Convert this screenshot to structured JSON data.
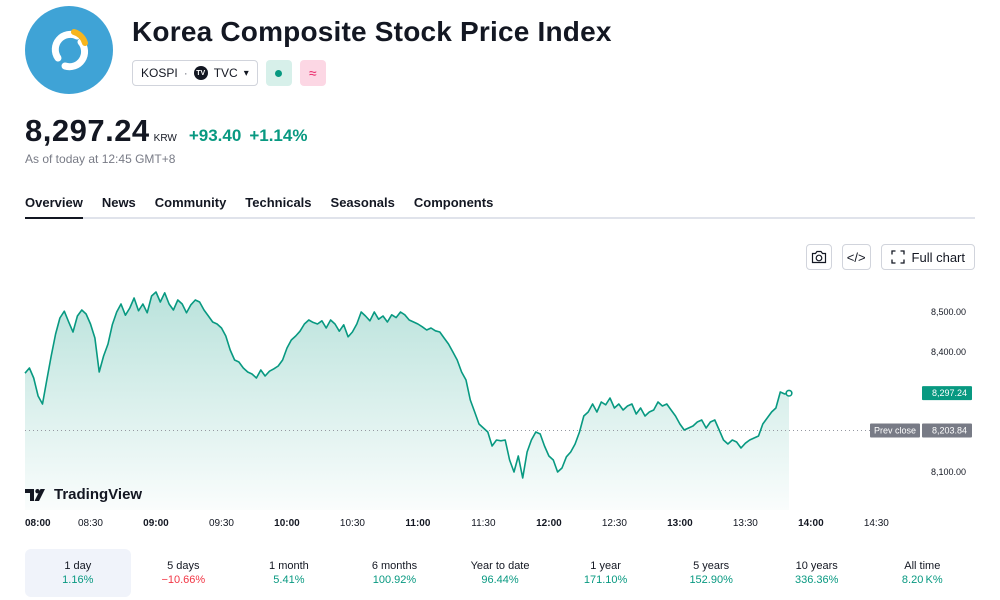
{
  "header": {
    "title": "Korea Composite Stock Price Index",
    "symbol": "KOSPI",
    "source": "TVC",
    "source_badge": "TV",
    "market_status_color": "#089981",
    "delay_icon": "≈"
  },
  "quote": {
    "price": "8,297.24",
    "currency": "KRW",
    "change": "+93.40",
    "change_pct": "+1.14%",
    "as_of": "As of today at 12:45 GMT+8"
  },
  "tabs": [
    "Overview",
    "News",
    "Community",
    "Technicals",
    "Seasonals",
    "Components"
  ],
  "toolbar": {
    "snapshot_icon": "camera-icon",
    "embed_icon": "code-icon",
    "embed_label": "</>",
    "full_chart_label": "Full chart"
  },
  "chart_data": {
    "type": "area",
    "x_ticks": [
      "08:00",
      "08:30",
      "09:00",
      "09:30",
      "10:00",
      "10:30",
      "11:00",
      "11:30",
      "12:00",
      "12:30",
      "13:00",
      "13:30",
      "14:00",
      "14:30"
    ],
    "y_ticks": [
      "8,500.00",
      "8,400.00",
      "8,100.00"
    ],
    "last_price_label": "8,297.24",
    "prev_close_tag": "Prev close",
    "prev_close_value": "8,203.84",
    "prev_close": 8203.84,
    "ylim": [
      8005,
      8580
    ],
    "x_start_minutes": 480,
    "x_end_minutes": 890,
    "line_color": "#089981",
    "series": [
      {
        "points": [
          [
            480,
            8347
          ],
          [
            482,
            8360
          ],
          [
            484,
            8335
          ],
          [
            486,
            8290
          ],
          [
            488,
            8270
          ],
          [
            490,
            8330
          ],
          [
            492,
            8390
          ],
          [
            494,
            8445
          ],
          [
            496,
            8485
          ],
          [
            498,
            8502
          ],
          [
            500,
            8475
          ],
          [
            502,
            8450
          ],
          [
            504,
            8490
          ],
          [
            506,
            8505
          ],
          [
            508,
            8495
          ],
          [
            510,
            8470
          ],
          [
            512,
            8435
          ],
          [
            514,
            8350
          ],
          [
            516,
            8390
          ],
          [
            518,
            8420
          ],
          [
            520,
            8468
          ],
          [
            522,
            8500
          ],
          [
            524,
            8520
          ],
          [
            526,
            8492
          ],
          [
            528,
            8510
          ],
          [
            530,
            8535
          ],
          [
            532,
            8503
          ],
          [
            534,
            8520
          ],
          [
            536,
            8498
          ],
          [
            538,
            8540
          ],
          [
            540,
            8550
          ],
          [
            542,
            8525
          ],
          [
            544,
            8548
          ],
          [
            546,
            8520
          ],
          [
            548,
            8505
          ],
          [
            550,
            8530
          ],
          [
            552,
            8520
          ],
          [
            554,
            8498
          ],
          [
            556,
            8518
          ],
          [
            558,
            8530
          ],
          [
            560,
            8525
          ],
          [
            562,
            8505
          ],
          [
            564,
            8490
          ],
          [
            566,
            8475
          ],
          [
            568,
            8470
          ],
          [
            570,
            8460
          ],
          [
            572,
            8440
          ],
          [
            574,
            8405
          ],
          [
            576,
            8380
          ],
          [
            578,
            8375
          ],
          [
            580,
            8360
          ],
          [
            582,
            8350
          ],
          [
            584,
            8345
          ],
          [
            586,
            8335
          ],
          [
            588,
            8355
          ],
          [
            590,
            8340
          ],
          [
            592,
            8352
          ],
          [
            594,
            8358
          ],
          [
            596,
            8365
          ],
          [
            598,
            8380
          ],
          [
            600,
            8410
          ],
          [
            602,
            8430
          ],
          [
            604,
            8440
          ],
          [
            606,
            8452
          ],
          [
            608,
            8470
          ],
          [
            610,
            8480
          ],
          [
            612,
            8474
          ],
          [
            614,
            8470
          ],
          [
            616,
            8478
          ],
          [
            618,
            8460
          ],
          [
            620,
            8480
          ],
          [
            622,
            8470
          ],
          [
            624,
            8452
          ],
          [
            626,
            8468
          ],
          [
            628,
            8438
          ],
          [
            630,
            8450
          ],
          [
            632,
            8470
          ],
          [
            634,
            8500
          ],
          [
            636,
            8490
          ],
          [
            638,
            8478
          ],
          [
            640,
            8500
          ],
          [
            642,
            8482
          ],
          [
            644,
            8490
          ],
          [
            646,
            8475
          ],
          [
            648,
            8493
          ],
          [
            650,
            8486
          ],
          [
            652,
            8500
          ],
          [
            654,
            8493
          ],
          [
            656,
            8480
          ],
          [
            658,
            8475
          ],
          [
            660,
            8470
          ],
          [
            662,
            8463
          ],
          [
            664,
            8455
          ],
          [
            666,
            8460
          ],
          [
            668,
            8453
          ],
          [
            670,
            8450
          ],
          [
            672,
            8435
          ],
          [
            674,
            8420
          ],
          [
            676,
            8400
          ],
          [
            678,
            8380
          ],
          [
            680,
            8350
          ],
          [
            682,
            8330
          ],
          [
            684,
            8280
          ],
          [
            686,
            8250
          ],
          [
            688,
            8220
          ],
          [
            690,
            8210
          ],
          [
            692,
            8200
          ],
          [
            694,
            8165
          ],
          [
            696,
            8180
          ],
          [
            698,
            8178
          ],
          [
            700,
            8180
          ],
          [
            702,
            8130
          ],
          [
            704,
            8100
          ],
          [
            706,
            8140
          ],
          [
            708,
            8085
          ],
          [
            710,
            8150
          ],
          [
            712,
            8180
          ],
          [
            714,
            8200
          ],
          [
            716,
            8195
          ],
          [
            718,
            8165
          ],
          [
            720,
            8140
          ],
          [
            722,
            8130
          ],
          [
            724,
            8100
          ],
          [
            726,
            8110
          ],
          [
            728,
            8138
          ],
          [
            730,
            8150
          ],
          [
            732,
            8170
          ],
          [
            734,
            8200
          ],
          [
            736,
            8240
          ],
          [
            738,
            8250
          ],
          [
            740,
            8270
          ],
          [
            742,
            8250
          ],
          [
            744,
            8275
          ],
          [
            746,
            8268
          ],
          [
            748,
            8285
          ],
          [
            750,
            8260
          ],
          [
            752,
            8270
          ],
          [
            754,
            8255
          ],
          [
            756,
            8265
          ],
          [
            758,
            8270
          ],
          [
            760,
            8245
          ],
          [
            762,
            8260
          ],
          [
            764,
            8240
          ],
          [
            766,
            8250
          ],
          [
            768,
            8255
          ],
          [
            770,
            8275
          ],
          [
            772,
            8265
          ],
          [
            774,
            8270
          ],
          [
            776,
            8255
          ],
          [
            778,
            8240
          ],
          [
            780,
            8220
          ],
          [
            782,
            8205
          ],
          [
            784,
            8210
          ],
          [
            786,
            8215
          ],
          [
            788,
            8225
          ],
          [
            790,
            8230
          ],
          [
            792,
            8210
          ],
          [
            794,
            8225
          ],
          [
            796,
            8230
          ],
          [
            798,
            8205
          ],
          [
            800,
            8180
          ],
          [
            802,
            8170
          ],
          [
            804,
            8180
          ],
          [
            806,
            8175
          ],
          [
            808,
            8160
          ],
          [
            810,
            8172
          ],
          [
            812,
            8180
          ],
          [
            814,
            8185
          ],
          [
            816,
            8190
          ],
          [
            818,
            8220
          ],
          [
            820,
            8235
          ],
          [
            822,
            8250
          ],
          [
            824,
            8260
          ],
          [
            826,
            8300
          ],
          [
            828,
            8295
          ],
          [
            830,
            8297
          ]
        ]
      }
    ]
  },
  "watermark": "TradingView",
  "ranges": [
    {
      "label": "1 day",
      "value": "1.16%",
      "dir": "pos"
    },
    {
      "label": "5 days",
      "value": "−10.66%",
      "dir": "neg"
    },
    {
      "label": "1 month",
      "value": "5.41%",
      "dir": "pos"
    },
    {
      "label": "6 months",
      "value": "100.92%",
      "dir": "pos"
    },
    {
      "label": "Year to date",
      "value": "96.44%",
      "dir": "pos"
    },
    {
      "label": "1 year",
      "value": "171.10%",
      "dir": "pos"
    },
    {
      "label": "5 years",
      "value": "152.90%",
      "dir": "pos"
    },
    {
      "label": "10 years",
      "value": "336.36%",
      "dir": "pos"
    },
    {
      "label": "All time",
      "value": "8.20 K%",
      "dir": "pos"
    }
  ]
}
